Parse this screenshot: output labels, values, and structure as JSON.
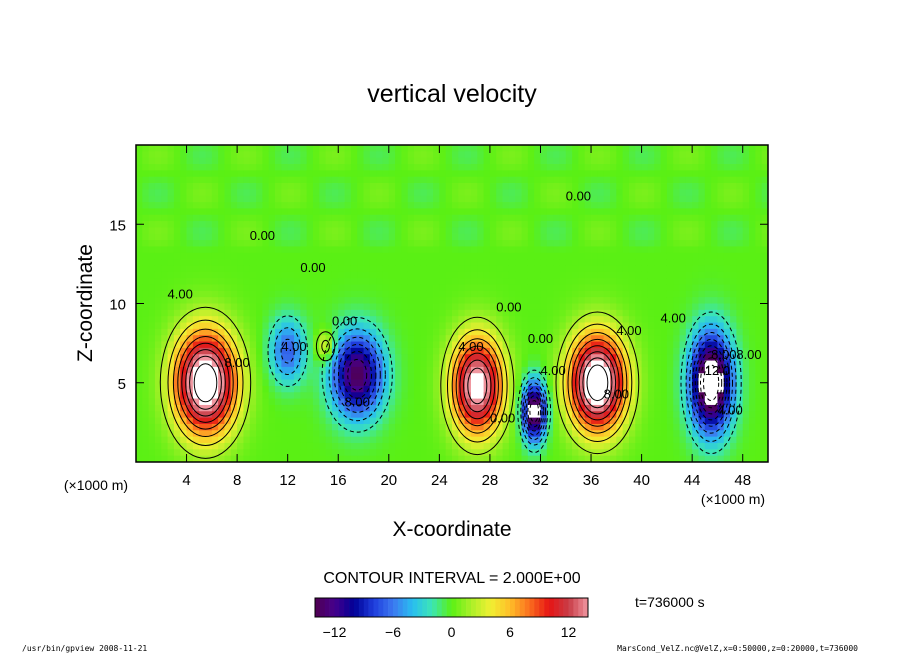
{
  "chart_data": {
    "type": "heatmap",
    "title": "vertical velocity",
    "xlabel": "X-coordinate",
    "ylabel": "Z-coordinate",
    "x_unit_left": "(×1000 m)",
    "x_unit_right": "(×1000 m)",
    "xlim": [
      0,
      50
    ],
    "ylim": [
      0,
      20
    ],
    "xticks": [
      "4",
      "8",
      "12",
      "16",
      "20",
      "24",
      "28",
      "32",
      "36",
      "40",
      "44",
      "48"
    ],
    "yticks": [
      "5",
      "10",
      "15"
    ],
    "contour_interval_text": "CONTOUR INTERVAL = 2.000E+00",
    "time_text": "t=736000 s",
    "colorbar": {
      "range": [
        -14,
        14
      ],
      "ticks": [
        "−12",
        "−6",
        "0",
        "6",
        "12"
      ]
    },
    "features": [
      {
        "kind": "updraft",
        "x": 5.5,
        "z": 5.0,
        "peak": 16
      },
      {
        "kind": "downdraft",
        "x": 12.0,
        "z": 7.0,
        "peak": -6
      },
      {
        "kind": "updraft",
        "x": 15.0,
        "z": 7.3,
        "peak": 4
      },
      {
        "kind": "downdraft",
        "x": 17.5,
        "z": 5.5,
        "peak": -12
      },
      {
        "kind": "updraft",
        "x": 27.0,
        "z": 4.8,
        "peak": 14
      },
      {
        "kind": "downdraft",
        "x": 31.5,
        "z": 3.2,
        "peak": -14
      },
      {
        "kind": "updraft",
        "x": 36.5,
        "z": 5.0,
        "peak": 16
      },
      {
        "kind": "downdraft",
        "x": 45.5,
        "z": 5.0,
        "peak": -16
      }
    ],
    "contour_labels": [
      "4.00",
      "8.00",
      "4.00",
      "0.00",
      "8.00",
      "4.00",
      "0.00",
      "0.00",
      "4.00",
      "0.00",
      "4.00",
      "8.00",
      "0.00",
      "4.00",
      "8.00",
      "4.00",
      "8.00",
      "12.0",
      "0.00",
      "0.00"
    ]
  },
  "footer": {
    "left": "/usr/bin/gpview   2008-11-21",
    "right": "MarsCond_VelZ.nc@VelZ,x=0:50000,z=0:20000,t=736000"
  }
}
